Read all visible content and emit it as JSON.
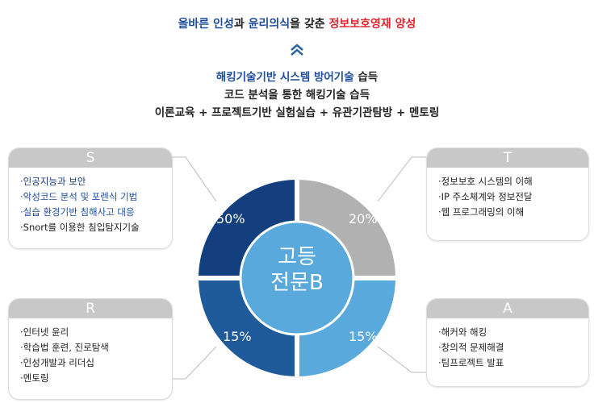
{
  "headline": {
    "part1": "올바른 인성",
    "part2": "과 ",
    "part3": "윤리의식",
    "part4": "을 갖춘 ",
    "part5": "정보보호영재 양성"
  },
  "chevron_icon": "double-chevron-up",
  "lines": [
    {
      "highlight": "해킹기술기반 시스템 방어기술",
      "rest": " 습득"
    },
    {
      "text": "코드 분석을 통한 해킹기술 습득"
    },
    {
      "text": "이론교육 + 프로젝트기반 실험실습 + 유관기관탐방 + 멘토링"
    }
  ],
  "center": {
    "line1": "고등",
    "line2": "전문B"
  },
  "quadrants": [
    {
      "label": "50%",
      "color": "#143f7f"
    },
    {
      "label": "20%",
      "color": "#b1b1b1"
    },
    {
      "label": "15%",
      "color": "#1f5b9b"
    },
    {
      "label": "15%",
      "color": "#5aa9dd"
    }
  ],
  "boxes": {
    "S": {
      "title": "S",
      "items": [
        "·인공지능과 보안",
        "·악성코드 분석 및 포렌식 기법",
        "·실습 환경기반 침해사고 대응",
        "·Snort를 이용한 침입탐지기술"
      ]
    },
    "T": {
      "title": "T",
      "items": [
        "·정보보호 시스템의 이해",
        "·IP 주소체계와 정보전달",
        "·웹 프로그래밍의 이해"
      ]
    },
    "R": {
      "title": "R",
      "items": [
        "·인터넷 윤리",
        "·학습법 훈련, 진로탐색",
        "·인성개발과 리더십",
        "·멘토링"
      ]
    },
    "A": {
      "title": "A",
      "items": [
        "·해커와 해킹",
        "·창의적 문제해결",
        "·팀프로젝트 발표"
      ]
    }
  }
}
